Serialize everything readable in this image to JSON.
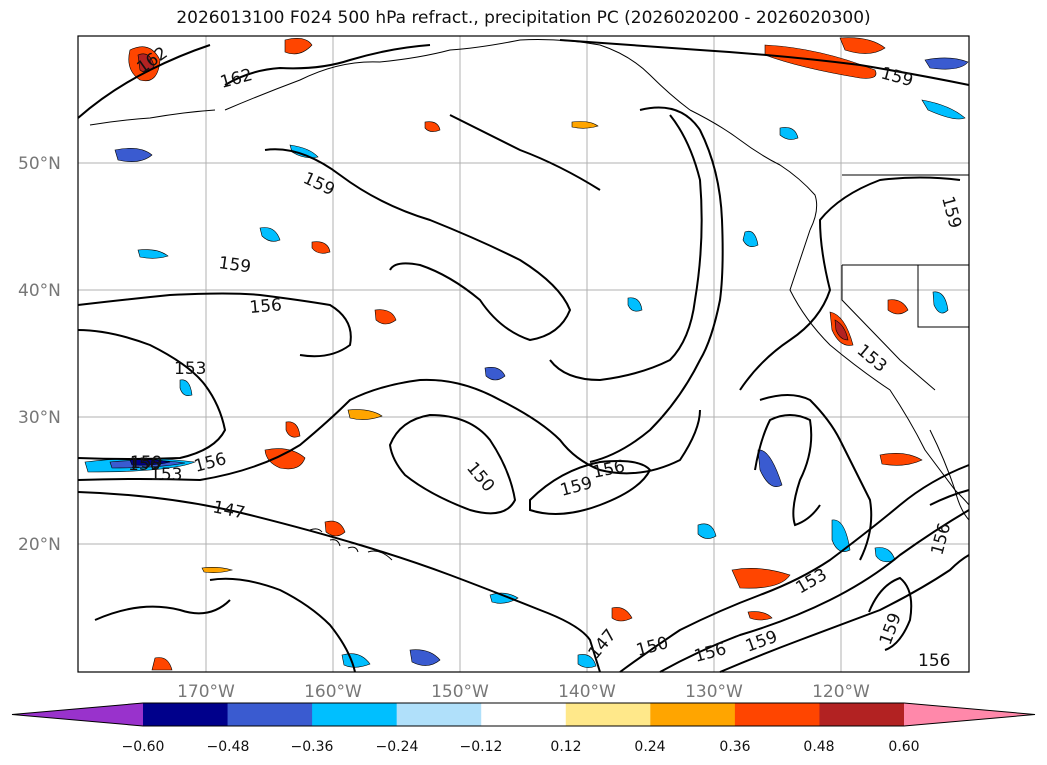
{
  "title": "2026013100 F024 500 hPa refract., precipitation PC (2026020200 - 2026020300)",
  "latitude_labels": [
    "50°N",
    "40°N",
    "30°N",
    "20°N"
  ],
  "longitude_labels": [
    "170°W",
    "160°W",
    "150°W",
    "140°W",
    "130°W",
    "120°W"
  ],
  "contour_labels": [
    "162",
    "162",
    "159",
    "159",
    "159",
    "159",
    "156",
    "156",
    "153",
    "153",
    "156",
    "159",
    "150",
    "156",
    "159",
    "147",
    "147",
    "150",
    "156",
    "159",
    "153",
    "159",
    "156",
    "156",
    "153"
  ],
  "colorbar": {
    "tick_labels": [
      "−0.60",
      "−0.48",
      "−0.36",
      "−0.24",
      "−0.12",
      "0.12",
      "0.24",
      "0.36",
      "0.48",
      "0.60"
    ],
    "colors": [
      "#9932cc",
      "#00008b",
      "#3a5bd0",
      "#00bfff",
      "#b0e0fa",
      "#ffffff",
      "#ffe88a",
      "#ffa500",
      "#ff4500",
      "#b22222",
      "#ff88aa"
    ]
  },
  "map_colors": {
    "contour": "#000000",
    "grid": "#b0b0b0",
    "coast": "#000000"
  }
}
